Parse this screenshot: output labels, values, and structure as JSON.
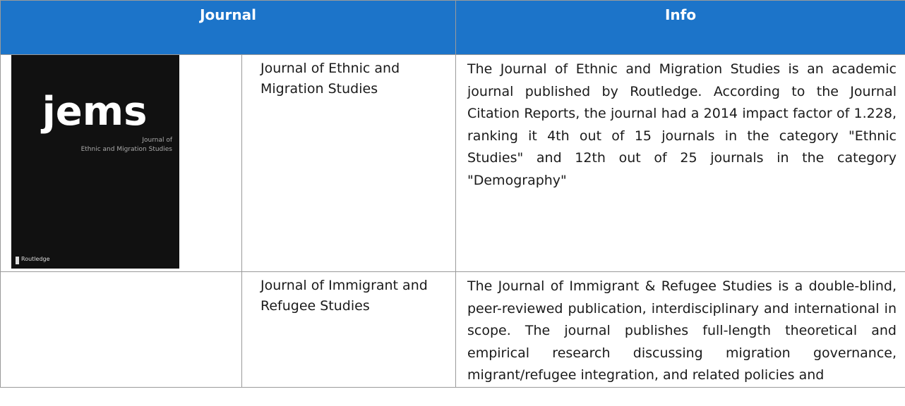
{
  "header": {
    "columns": [
      "Journal",
      "Info"
    ]
  },
  "cover": {
    "logo": "jems",
    "line1": "Journal of",
    "line2": "Ethnic and Migration Studies",
    "publisher": "Routledge"
  },
  "rows": [
    {
      "name": "Journal of Ethnic and Migration Studies",
      "info": "The Journal of Ethnic and Migration Studies is an academic journal published by Routledge. According to the Journal Citation Reports, the journal had a 2014 impact factor of 1.228, ranking it 4th out of 15 journals in the category \"Ethnic Studies\" and 12th out of 25 journals in the category \"Demography\""
    },
    {
      "name": "Journal of Immigrant and Refugee Studies",
      "info": "The Journal of Immigrant & Refugee Studies is a double-blind, peer-reviewed publication, interdisciplinary and international in scope. The journal publishes full-length theoretical and empirical research discussing migration governance, migrant/refugee integration, and related policies and"
    }
  ]
}
